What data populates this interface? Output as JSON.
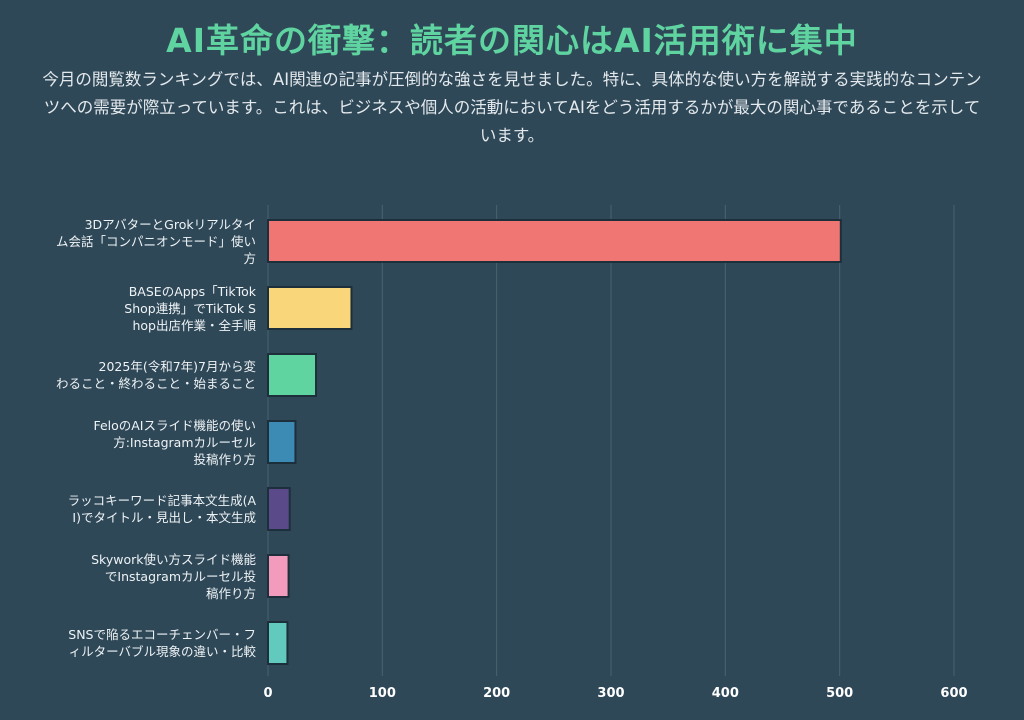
{
  "header": {
    "title": "AI革命の衝撃：読者の関心はAI活用術に集中",
    "subtitle": "今月の閲覧数ランキングでは、AI関連の記事が圧倒的な強さを見せました。特に、具体的な使い方を解説する実践的なコンテンツへの需要が際立っています。これは、ビジネスや個人の活動においてAIをどう活用するかが最大の関心事であることを示しています。"
  },
  "chart_data": {
    "type": "bar",
    "orientation": "horizontal",
    "categories": [
      "3DアバターとGrokリアルタイム会話「コンパニオンモード」使い方",
      "BASEのApps「TikTok Shop連携」でTikTok Shop出店作業・全手順",
      "2025年(令和7年)7月から変わること・終わること・始まること",
      "FeloのAIスライド機能の使い方:Instagramカルーセル投稿作り方",
      "ラッコキーワード記事本文生成(AI)でタイトル・見出し・本文生成",
      "Skywork使い方スライド機能でInstagramカルーセル投稿作り方",
      "SNSで陥るエコーチェンバー・フィルターバブル現象の違い・比較"
    ],
    "category_lines": [
      [
        "3DアバターとGrokリアルタイ",
        "ム会話「コンパニオンモード」使い",
        "方"
      ],
      [
        "BASEのApps「TikTok",
        "Shop連携」でTikTok S",
        "hop出店作業・全手順"
      ],
      [
        "2025年(令和7年)7月から変",
        "わること・終わること・始まること"
      ],
      [
        "FeloのAIスライド機能の使い",
        "方:Instagramカルーセル",
        "投稿作り方"
      ],
      [
        "ラッコキーワード記事本文生成(A",
        "I)でタイトル・見出し・本文生成"
      ],
      [
        "Skywork使い方スライド機能",
        "でInstagramカルーセル投",
        "稿作り方"
      ],
      [
        "SNSで陥るエコーチェンバー・フ",
        "ィルターバブル現象の違い・比較"
      ]
    ],
    "values": [
      501,
      73,
      42,
      24,
      19,
      18,
      17
    ],
    "colors": [
      "#ef7672",
      "#f9d67a",
      "#5fd4a0",
      "#3b8bb5",
      "#5a4a8a",
      "#f29bbd",
      "#62c9be"
    ],
    "xlim": [
      0,
      600
    ],
    "xticks": [
      "0",
      "100",
      "200",
      "300",
      "400",
      "500",
      "600"
    ],
    "grid": true,
    "xlabel": "",
    "ylabel": ""
  }
}
